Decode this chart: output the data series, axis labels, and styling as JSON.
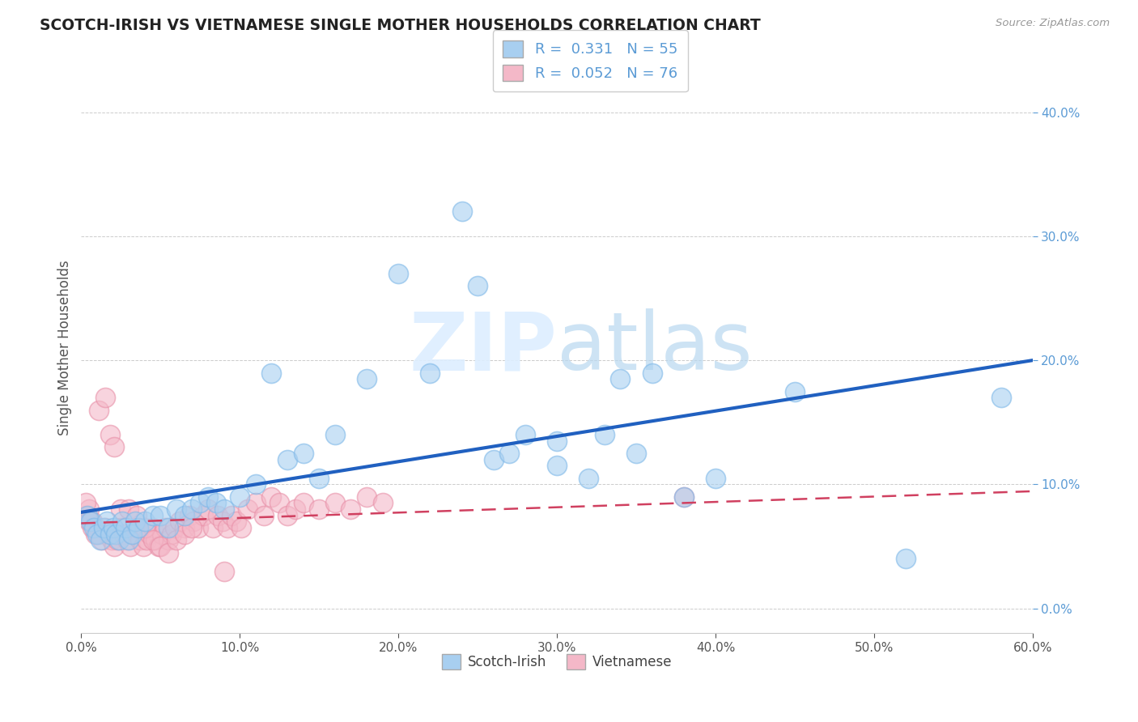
{
  "title": "SCOTCH-IRISH VS VIETNAMESE SINGLE MOTHER HOUSEHOLDS CORRELATION CHART",
  "source": "Source: ZipAtlas.com",
  "ylabel": "Single Mother Households",
  "xlim": [
    0.0,
    0.6
  ],
  "ylim": [
    -0.02,
    0.44
  ],
  "xticks": [
    0.0,
    0.1,
    0.2,
    0.3,
    0.4,
    0.5,
    0.6
  ],
  "xtick_labels": [
    "0.0%",
    "10.0%",
    "20.0%",
    "30.0%",
    "40.0%",
    "50.0%",
    "60.0%"
  ],
  "yticks": [
    0.0,
    0.1,
    0.2,
    0.3,
    0.4
  ],
  "ytick_labels": [
    "0.0%",
    "10.0%",
    "20.0%",
    "30.0%",
    "40.0%"
  ],
  "blue_R": 0.331,
  "blue_N": 55,
  "pink_R": 0.052,
  "pink_N": 76,
  "blue_color": "#a8cff0",
  "blue_edge_color": "#7eb8e8",
  "pink_color": "#f4b8c8",
  "pink_edge_color": "#e890a8",
  "blue_line_color": "#2060c0",
  "pink_line_color": "#d04060",
  "watermark_color": "#ddeeff",
  "background_color": "#ffffff",
  "scotch_irish_x": [
    0.004,
    0.006,
    0.008,
    0.01,
    0.012,
    0.014,
    0.016,
    0.018,
    0.02,
    0.022,
    0.024,
    0.026,
    0.028,
    0.03,
    0.032,
    0.034,
    0.036,
    0.04,
    0.045,
    0.05,
    0.055,
    0.06,
    0.065,
    0.07,
    0.075,
    0.08,
    0.085,
    0.09,
    0.1,
    0.11,
    0.12,
    0.13,
    0.14,
    0.15,
    0.16,
    0.18,
    0.2,
    0.22,
    0.24,
    0.26,
    0.28,
    0.3,
    0.32,
    0.34,
    0.36,
    0.38,
    0.4,
    0.25,
    0.27,
    0.3,
    0.33,
    0.35,
    0.45,
    0.52,
    0.58
  ],
  "scotch_irish_y": [
    0.075,
    0.07,
    0.065,
    0.06,
    0.055,
    0.065,
    0.07,
    0.06,
    0.065,
    0.06,
    0.055,
    0.07,
    0.065,
    0.055,
    0.06,
    0.07,
    0.065,
    0.07,
    0.075,
    0.075,
    0.065,
    0.08,
    0.075,
    0.08,
    0.085,
    0.09,
    0.085,
    0.08,
    0.09,
    0.1,
    0.19,
    0.12,
    0.125,
    0.105,
    0.14,
    0.185,
    0.27,
    0.19,
    0.32,
    0.12,
    0.14,
    0.115,
    0.105,
    0.185,
    0.19,
    0.09,
    0.105,
    0.26,
    0.125,
    0.135,
    0.14,
    0.125,
    0.175,
    0.04,
    0.17
  ],
  "vietnamese_x": [
    0.003,
    0.005,
    0.007,
    0.009,
    0.011,
    0.013,
    0.015,
    0.017,
    0.019,
    0.021,
    0.023,
    0.025,
    0.027,
    0.029,
    0.031,
    0.033,
    0.035,
    0.037,
    0.039,
    0.041,
    0.043,
    0.045,
    0.047,
    0.049,
    0.051,
    0.053,
    0.055,
    0.057,
    0.059,
    0.062,
    0.065,
    0.068,
    0.071,
    0.074,
    0.077,
    0.08,
    0.083,
    0.086,
    0.089,
    0.092,
    0.095,
    0.098,
    0.101,
    0.105,
    0.11,
    0.115,
    0.12,
    0.125,
    0.13,
    0.135,
    0.14,
    0.15,
    0.16,
    0.17,
    0.003,
    0.005,
    0.007,
    0.009,
    0.011,
    0.015,
    0.018,
    0.021,
    0.025,
    0.03,
    0.035,
    0.04,
    0.045,
    0.05,
    0.055,
    0.06,
    0.065,
    0.07,
    0.38,
    0.18,
    0.19,
    0.09
  ],
  "vietnamese_y": [
    0.075,
    0.08,
    0.07,
    0.065,
    0.06,
    0.055,
    0.065,
    0.06,
    0.055,
    0.05,
    0.055,
    0.065,
    0.06,
    0.055,
    0.05,
    0.06,
    0.065,
    0.055,
    0.05,
    0.055,
    0.06,
    0.065,
    0.055,
    0.05,
    0.06,
    0.065,
    0.055,
    0.06,
    0.065,
    0.07,
    0.065,
    0.075,
    0.07,
    0.065,
    0.075,
    0.08,
    0.065,
    0.075,
    0.07,
    0.065,
    0.075,
    0.07,
    0.065,
    0.08,
    0.085,
    0.075,
    0.09,
    0.085,
    0.075,
    0.08,
    0.085,
    0.08,
    0.085,
    0.08,
    0.085,
    0.07,
    0.065,
    0.06,
    0.16,
    0.17,
    0.14,
    0.13,
    0.08,
    0.08,
    0.075,
    0.065,
    0.055,
    0.05,
    0.045,
    0.055,
    0.06,
    0.065,
    0.09,
    0.09,
    0.085,
    0.03
  ]
}
